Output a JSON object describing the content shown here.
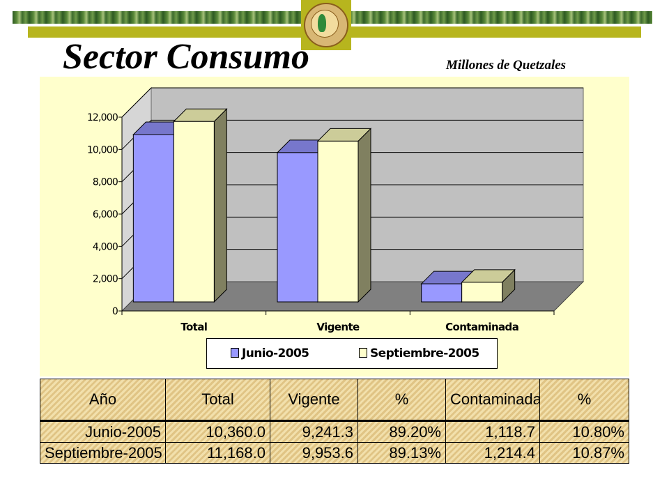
{
  "header": {
    "title": "Sector Consumo",
    "subtitle": "Millones de Quetzales",
    "seal_icon": "seal-icon",
    "colors": {
      "stripe_green": "#3d6b2c",
      "olive": "#b7b51e"
    }
  },
  "chart_data": {
    "type": "bar",
    "categories": [
      "Total",
      "Vigente",
      "Contaminada"
    ],
    "series": [
      {
        "name": "Junio-2005",
        "values": [
          10360.0,
          9241.3,
          1118.7
        ],
        "color": "#9999ff"
      },
      {
        "name": "Septiembre-2005",
        "values": [
          11168.0,
          9953.6,
          1214.4
        ],
        "color": "#ffffcc"
      }
    ],
    "yticks": [
      "0",
      "2,000",
      "4,000",
      "6,000",
      "8,000",
      "10,000",
      "12,000"
    ],
    "ylim": [
      0,
      12000
    ],
    "grid": true,
    "legend_position": "bottom",
    "title": "",
    "xlabel": "",
    "ylabel": ""
  },
  "table": {
    "headers": [
      "Año",
      "Total",
      "Vigente",
      "%",
      "Contaminada",
      "%"
    ],
    "rows": [
      [
        "Junio-2005",
        "10,360.0",
        "9,241.3",
        "89.20%",
        "1,118.7",
        "10.80%"
      ],
      [
        "Septiembre-2005",
        "11,168.0",
        "9,953.6",
        "89.13%",
        "1,214.4",
        "10.87%"
      ]
    ]
  }
}
